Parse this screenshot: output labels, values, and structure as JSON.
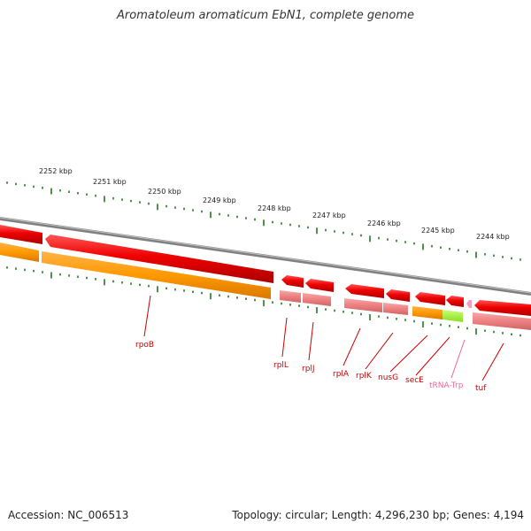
{
  "title": "Aromatoleum aromaticum EbN1, complete genome",
  "footer": {
    "accession": "Accession: NC_006513",
    "summary": "Topology: circular; Length: 4,296,230 bp; Genes: 4,194"
  },
  "colors": {
    "cds": "#ee0000",
    "gene": "#ff9900",
    "rna": "#f08080",
    "trna": "#99ee33",
    "backbone": "#808080",
    "ticks": "#227722",
    "gene_label": "#cc0000",
    "trna_label": "#ee6699"
  },
  "scale_labels": [
    "2252 kbp",
    "2251 kbp",
    "2250 kbp",
    "2249 kbp",
    "2248 kbp",
    "2247 kbp",
    "2246 kbp",
    "2245 kbp",
    "2244 kbp"
  ],
  "gene_labels": [
    "rpoB",
    "rplL",
    "rplJ",
    "rplA",
    "rplK",
    "nusG",
    "secE",
    "tRNA-Trp",
    "tuf"
  ]
}
